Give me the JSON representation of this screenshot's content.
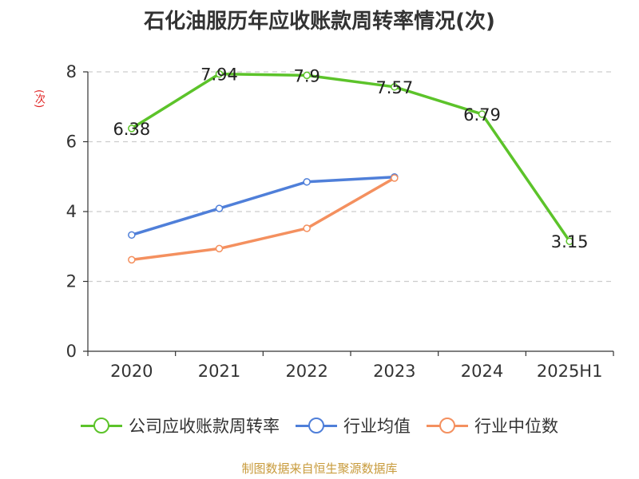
{
  "chart_data": {
    "type": "line",
    "title": "石化油服历年应收账款周转率情况(次)",
    "ylabel": "(次)",
    "categories": [
      "2020",
      "2021",
      "2022",
      "2023",
      "2024",
      "2025H1"
    ],
    "ylim": [
      0,
      8
    ],
    "yticks": [
      0,
      2,
      4,
      6,
      8
    ],
    "grid": true,
    "legend_position": "bottom",
    "series": [
      {
        "name": "公司应收账款周转率",
        "color": "#5cc32a",
        "values": [
          6.38,
          7.94,
          7.9,
          7.57,
          6.79,
          3.15
        ],
        "data_labels": [
          "6.38",
          "7.94",
          "7.9",
          "7.57",
          "6.79",
          "3.15"
        ]
      },
      {
        "name": "行业均值",
        "color": "#4f7fd9",
        "values": [
          3.33,
          4.09,
          4.85,
          4.99,
          null,
          null
        ]
      },
      {
        "name": "行业中位数",
        "color": "#f4905f",
        "values": [
          2.62,
          2.94,
          3.52,
          4.96,
          null,
          null
        ]
      }
    ]
  },
  "source": "制图数据来自恒生聚源数据库"
}
